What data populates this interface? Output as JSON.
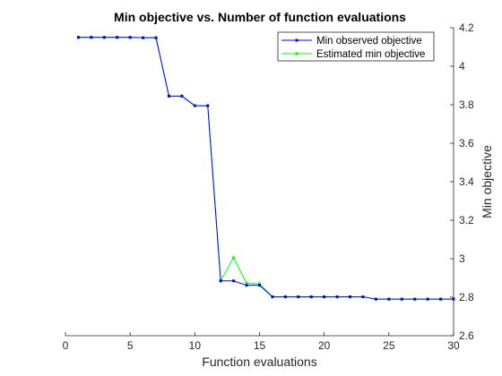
{
  "chart_data": {
    "type": "line",
    "title": "Min objective vs. Number of function evaluations",
    "xlabel": "Function evaluations",
    "ylabel": "Min objective",
    "xlim": [
      0,
      30
    ],
    "ylim": [
      2.6,
      4.2
    ],
    "x_ticks": [
      "0",
      "5",
      "10",
      "15",
      "20",
      "25",
      "30"
    ],
    "y_ticks": [
      "2.6",
      "2.8",
      "3",
      "3.2",
      "3.4",
      "3.6",
      "3.8",
      "4",
      "4.2"
    ],
    "y_axis_side": "right",
    "grid": false,
    "legend_position": "top-right",
    "x": [
      1,
      2,
      3,
      4,
      5,
      6,
      7,
      8,
      9,
      10,
      11,
      12,
      13,
      14,
      15,
      16,
      17,
      18,
      19,
      20,
      21,
      22,
      23,
      24,
      25,
      26,
      27,
      28,
      29,
      30
    ],
    "series": [
      {
        "name": "Min observed objective",
        "color": "#0000ff",
        "values": [
          4.15,
          4.15,
          4.15,
          4.15,
          4.15,
          4.148,
          4.148,
          3.845,
          3.845,
          3.795,
          3.795,
          2.885,
          2.885,
          2.862,
          2.862,
          2.802,
          2.802,
          2.802,
          2.802,
          2.802,
          2.802,
          2.802,
          2.802,
          2.79,
          2.79,
          2.79,
          2.79,
          2.79,
          2.79,
          2.79
        ]
      },
      {
        "name": "Estimated min objective",
        "color": "#00ff00",
        "values": [
          4.15,
          4.15,
          4.15,
          4.15,
          4.15,
          4.148,
          4.148,
          3.845,
          3.845,
          3.795,
          3.795,
          2.885,
          3.005,
          2.872,
          2.87,
          2.802,
          2.802,
          2.802,
          2.802,
          2.802,
          2.802,
          2.802,
          2.802,
          2.79,
          2.79,
          2.79,
          2.79,
          2.79,
          2.79,
          2.79
        ]
      }
    ]
  }
}
